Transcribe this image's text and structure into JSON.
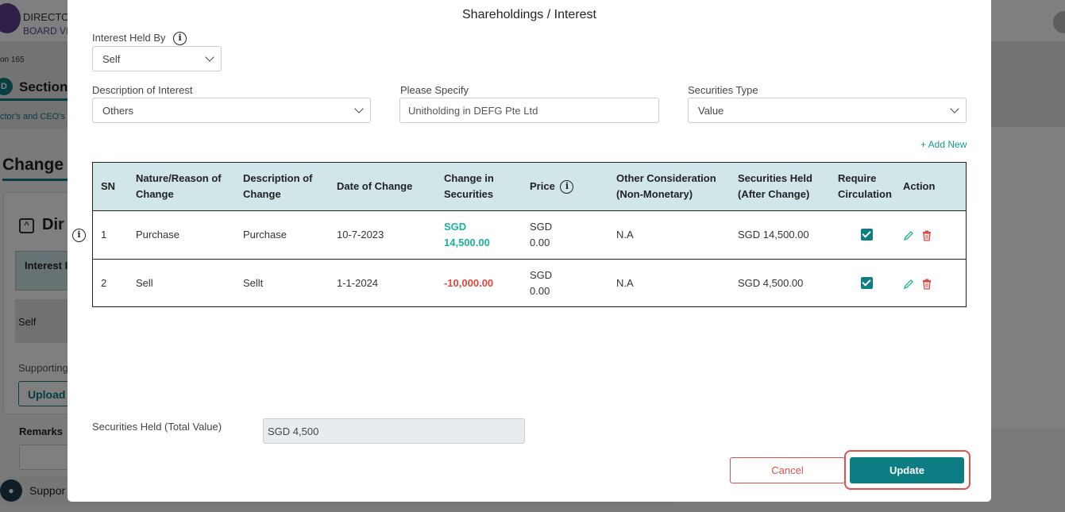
{
  "background": {
    "brand_line1": "DIRECTO",
    "brand_line2": "BOARD VI",
    "breadcrumb": "on 165",
    "section_icon": "D",
    "section_title": "Section",
    "section_subtitle": "ctor's and CEO's",
    "change_heading": "Change i",
    "collapse_icon": "^",
    "card_title": "Dir",
    "interest_header": "Interest I",
    "interest_value": "Self",
    "supporting_label": "Supporting",
    "upload_label": "Upload",
    "remarks_label": "Remarks",
    "support_label": "Suppor"
  },
  "modal": {
    "title": "Shareholdings / Interest",
    "interest_held_by": {
      "label": "Interest Held By",
      "value": "Self"
    },
    "description_of_interest": {
      "label": "Description of Interest",
      "value": "Others"
    },
    "please_specify": {
      "label": "Please Specify",
      "value": "Unitholding in DEFG Pte Ltd"
    },
    "securities_type": {
      "label": "Securities Type",
      "value": "Value"
    },
    "add_new": "+ Add New",
    "info_glyph": "i",
    "table": {
      "headers": {
        "sn": "SN",
        "nature_1": "Nature/Reason of",
        "nature_2": "Change",
        "desc_1": "Description of",
        "desc_2": "Change",
        "date": "Date of Change",
        "change_1": "Change in",
        "change_2": "Securities",
        "price": "Price",
        "other_1": "Other Consideration",
        "other_2": "(Non-Monetary)",
        "held_1": "Securities Held",
        "held_2": "(After Change)",
        "req_1": "Require",
        "req_2": "Circulation",
        "action": "Action"
      },
      "rows": [
        {
          "sn": "1",
          "nature": "Purchase",
          "description": "Purchase",
          "date": "10-7-2023",
          "change_currency": "SGD",
          "change_amount": "14,500.00",
          "price_currency": "SGD",
          "price_amount": "0.00",
          "other": "N.A",
          "held": "SGD 14,500.00",
          "require_circulation": true
        },
        {
          "sn": "2",
          "nature": "Sell",
          "description": "Sellt",
          "date": "1-1-2024",
          "change": "-10,000.00",
          "price_currency": "SGD",
          "price_amount": "0.00",
          "other": "N.A",
          "held": "SGD 4,500.00",
          "require_circulation": true
        }
      ]
    },
    "total": {
      "label": "Securities Held (Total Value)",
      "value": "SGD  4,500"
    },
    "cancel_label": "Cancel",
    "update_label": "Update"
  },
  "colors": {
    "primary": "#0d7d84",
    "header_bg": "#d1e6e8",
    "positive": "#19b39c",
    "negative": "#e0453f",
    "highlight": "#d9534f"
  }
}
